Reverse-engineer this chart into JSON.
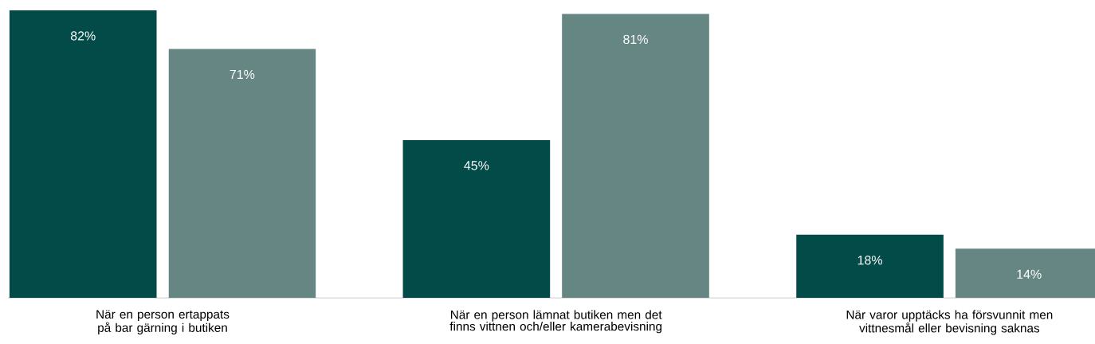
{
  "chart_data": {
    "type": "bar",
    "categories": [
      "När en person ertappats på bar gärning i butiken",
      "När en person lämnat butiken men det finns vittnen och/eller kamerabevisning",
      "När varor upptäcks ha försvunnit men vittnesmål eller bevisning saknas"
    ],
    "series": [
      {
        "color": "#034b49",
        "values": [
          82,
          45,
          18
        ],
        "value_labels": [
          "82%",
          "45%",
          "18%"
        ]
      },
      {
        "color": "#668683",
        "values": [
          71,
          81,
          14
        ],
        "value_labels": [
          "71%",
          "81%",
          "14%"
        ]
      }
    ]
  }
}
